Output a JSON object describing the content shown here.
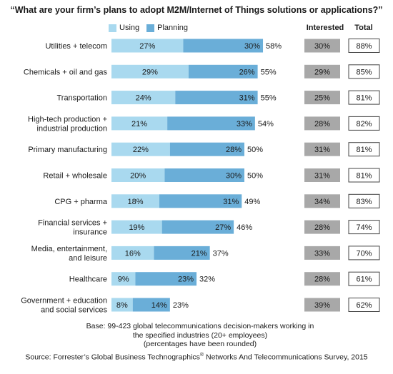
{
  "chart_data": {
    "type": "bar",
    "stacked": true,
    "orientation": "horizontal",
    "title": "“What are your firm’s plans to adopt M2M/Internet of Things solutions or applications?”",
    "legend": {
      "position": "top-left",
      "items": [
        "Using",
        "Planning"
      ]
    },
    "categories": [
      [
        "Utilities + telecom"
      ],
      [
        "Chemicals + oil and gas"
      ],
      [
        "Transportation"
      ],
      [
        "High-tech production +",
        "industrial production"
      ],
      [
        "Primary manufacturing"
      ],
      [
        "Retail + wholesale"
      ],
      [
        "CPG + pharma"
      ],
      [
        "Financial services +",
        "insurance"
      ],
      [
        "Media, entertainment,",
        "and leisure"
      ],
      [
        "Healthcare"
      ],
      [
        "Government + education",
        "and social services"
      ]
    ],
    "series": [
      {
        "name": "Using",
        "color": "#a9d9ef",
        "values": [
          27,
          29,
          24,
          21,
          22,
          20,
          18,
          19,
          16,
          9,
          8
        ]
      },
      {
        "name": "Planning",
        "color": "#6aaed8",
        "values": [
          30,
          26,
          31,
          33,
          28,
          30,
          31,
          27,
          21,
          23,
          14
        ]
      }
    ],
    "bar_totals": [
      58,
      55,
      55,
      54,
      50,
      50,
      49,
      46,
      37,
      32,
      23
    ],
    "interested_header": "Interested",
    "interested": [
      30,
      29,
      25,
      28,
      31,
      31,
      34,
      28,
      33,
      28,
      39
    ],
    "total_header": "Total",
    "total": [
      88,
      85,
      81,
      82,
      81,
      81,
      83,
      74,
      70,
      61,
      62
    ],
    "value_suffix": "%",
    "colors": {
      "interested_box": "#a8a8a8",
      "total_border": "#444444",
      "text": "#1a1a1a"
    }
  },
  "footer": {
    "base_line1": "Base: 99-423 global telecommunications decision-makers working in",
    "base_line2": "the specified industries (20+ employees)",
    "base_line3": "(percentages have been rounded)",
    "source_before": "Source: Forrester’s Global Business Technographics",
    "source_reg": "®",
    "source_after": " Networks And Telecommunications Survey, 2015"
  }
}
